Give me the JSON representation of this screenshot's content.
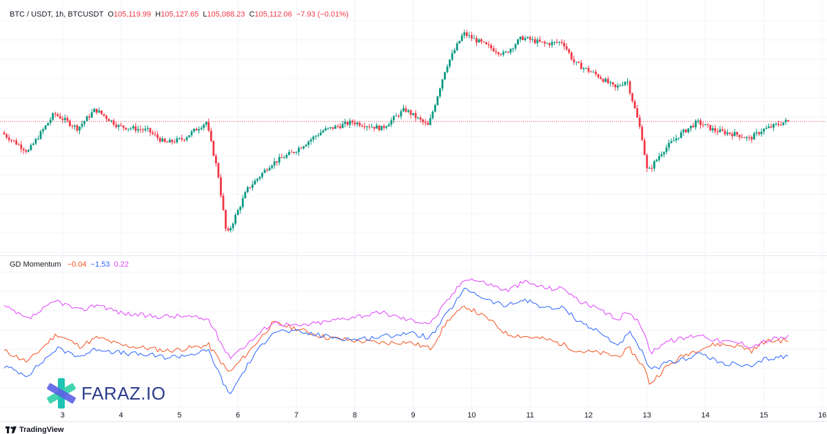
{
  "header": {
    "symbol": "BTC / USDT, 1h, BTCUSDT",
    "o_label": "O",
    "o_value": "105,119.99",
    "h_label": "H",
    "h_value": "105,127.65",
    "l_label": "L",
    "l_value": "105,088.23",
    "c_label": "C",
    "c_value": "105,112.06",
    "change": "−7.93 (−0.01%)"
  },
  "indicator": {
    "name": "GD Momentum",
    "v1": "−0.04",
    "v1_color": "#f4511e",
    "v2": "−1.53",
    "v2_color": "#2962ff",
    "v3": "0.22",
    "v3_color": "#e040fb"
  },
  "watermark": {
    "text": "FARAZ.IO"
  },
  "footer": {
    "brand": "TradingView"
  },
  "colors": {
    "up": "#089981",
    "down": "#f23645",
    "grid": "#f0f3fa",
    "last_price_line": "#f23645"
  },
  "chart_data": {
    "type": "candlestick",
    "x_ticks": [
      "3",
      "4",
      "5",
      "6",
      "7",
      "8",
      "9",
      "10",
      "11",
      "12",
      "13",
      "14",
      "15",
      "16"
    ],
    "price_anchors": [
      [
        2.0,
        104850
      ],
      [
        2.45,
        104400
      ],
      [
        2.9,
        105300
      ],
      [
        3.3,
        104950
      ],
      [
        3.6,
        105400
      ],
      [
        4.0,
        105000
      ],
      [
        4.5,
        104900
      ],
      [
        4.8,
        104600
      ],
      [
        5.1,
        104700
      ],
      [
        5.5,
        105100
      ],
      [
        5.7,
        103900
      ],
      [
        5.85,
        102400
      ],
      [
        6.2,
        103500
      ],
      [
        6.6,
        104100
      ],
      [
        7.0,
        104400
      ],
      [
        7.5,
        104900
      ],
      [
        8.0,
        105100
      ],
      [
        8.5,
        104950
      ],
      [
        8.9,
        105400
      ],
      [
        9.3,
        105000
      ],
      [
        9.6,
        106400
      ],
      [
        9.9,
        107200
      ],
      [
        10.3,
        106900
      ],
      [
        10.6,
        106700
      ],
      [
        10.9,
        107100
      ],
      [
        11.3,
        106950
      ],
      [
        11.6,
        107000
      ],
      [
        11.8,
        106500
      ],
      [
        12.2,
        106200
      ],
      [
        12.5,
        105900
      ],
      [
        12.7,
        106100
      ],
      [
        12.95,
        104800
      ],
      [
        13.05,
        103900
      ],
      [
        13.3,
        104400
      ],
      [
        13.6,
        104800
      ],
      [
        13.9,
        105100
      ],
      [
        14.2,
        104900
      ],
      [
        14.6,
        104800
      ],
      [
        14.8,
        104700
      ],
      [
        15.0,
        104900
      ],
      [
        15.2,
        105000
      ],
      [
        15.4,
        105110
      ]
    ],
    "y_range_price": [
      102200,
      107500
    ],
    "last_price": 105112.06,
    "series": [
      {
        "name": "−0.04",
        "color": "#f4511e",
        "points": [
          [
            2.0,
            -1.0
          ],
          [
            2.4,
            -2.0
          ],
          [
            2.9,
            0.5
          ],
          [
            3.3,
            -0.6
          ],
          [
            3.6,
            0.2
          ],
          [
            4.0,
            -0.5
          ],
          [
            4.5,
            -0.8
          ],
          [
            4.8,
            -1.0
          ],
          [
            5.1,
            -0.8
          ],
          [
            5.5,
            -0.5
          ],
          [
            5.85,
            -3.0
          ],
          [
            6.2,
            -1.0
          ],
          [
            6.6,
            1.5
          ],
          [
            7.0,
            1.0
          ],
          [
            7.5,
            0.2
          ],
          [
            8.0,
            -0.1
          ],
          [
            8.5,
            -0.3
          ],
          [
            8.9,
            -0.2
          ],
          [
            9.3,
            -0.8
          ],
          [
            9.6,
            1.8
          ],
          [
            9.9,
            3.0
          ],
          [
            10.3,
            1.8
          ],
          [
            10.6,
            0.5
          ],
          [
            10.9,
            0.3
          ],
          [
            11.3,
            0.0
          ],
          [
            11.6,
            -0.5
          ],
          [
            11.8,
            -1.0
          ],
          [
            12.2,
            -1.2
          ],
          [
            12.5,
            -1.5
          ],
          [
            12.7,
            -0.8
          ],
          [
            12.95,
            -2.5
          ],
          [
            13.05,
            -4.0
          ],
          [
            13.3,
            -2.6
          ],
          [
            13.6,
            -1.5
          ],
          [
            13.9,
            -0.8
          ],
          [
            14.2,
            -0.4
          ],
          [
            14.6,
            -0.6
          ],
          [
            14.8,
            -1.0
          ],
          [
            15.0,
            -0.2
          ],
          [
            15.2,
            -0.1
          ],
          [
            15.4,
            -0.04
          ]
        ]
      },
      {
        "name": "−1.53",
        "color": "#2962ff",
        "points": [
          [
            2.0,
            -2.4
          ],
          [
            2.4,
            -3.2
          ],
          [
            2.9,
            -0.8
          ],
          [
            3.3,
            -1.5
          ],
          [
            3.6,
            -0.8
          ],
          [
            4.0,
            -1.2
          ],
          [
            4.5,
            -1.4
          ],
          [
            4.8,
            -1.6
          ],
          [
            5.1,
            -1.4
          ],
          [
            5.5,
            -1.0
          ],
          [
            5.85,
            -5.0
          ],
          [
            6.2,
            -2.0
          ],
          [
            6.6,
            0.8
          ],
          [
            7.0,
            0.7
          ],
          [
            7.5,
            0.3
          ],
          [
            8.0,
            0.0
          ],
          [
            8.5,
            0.3
          ],
          [
            8.9,
            0.6
          ],
          [
            9.3,
            0.2
          ],
          [
            9.6,
            2.5
          ],
          [
            9.9,
            4.6
          ],
          [
            10.3,
            3.5
          ],
          [
            10.6,
            3.0
          ],
          [
            10.9,
            3.6
          ],
          [
            11.3,
            2.8
          ],
          [
            11.6,
            2.8
          ],
          [
            11.8,
            1.8
          ],
          [
            12.2,
            0.6
          ],
          [
            12.5,
            -0.5
          ],
          [
            12.7,
            0.6
          ],
          [
            12.95,
            -1.4
          ],
          [
            13.05,
            -2.8
          ],
          [
            13.3,
            -2.2
          ],
          [
            13.6,
            -1.8
          ],
          [
            13.9,
            -1.2
          ],
          [
            14.2,
            -2.0
          ],
          [
            14.6,
            -2.3
          ],
          [
            14.8,
            -2.5
          ],
          [
            15.0,
            -1.8
          ],
          [
            15.2,
            -1.6
          ],
          [
            15.4,
            -1.53
          ]
        ]
      },
      {
        "name": "0.22",
        "color": "#e040fb",
        "points": [
          [
            2.0,
            3.0
          ],
          [
            2.4,
            1.8
          ],
          [
            2.9,
            3.5
          ],
          [
            3.3,
            2.6
          ],
          [
            3.6,
            3.2
          ],
          [
            4.0,
            2.4
          ],
          [
            4.5,
            2.1
          ],
          [
            4.8,
            2.1
          ],
          [
            5.1,
            2.1
          ],
          [
            5.5,
            1.8
          ],
          [
            5.85,
            -1.6
          ],
          [
            6.2,
            -0.2
          ],
          [
            6.6,
            1.6
          ],
          [
            7.0,
            1.2
          ],
          [
            7.5,
            1.6
          ],
          [
            8.0,
            2.1
          ],
          [
            8.5,
            2.4
          ],
          [
            8.9,
            1.8
          ],
          [
            9.3,
            1.5
          ],
          [
            9.6,
            3.6
          ],
          [
            9.9,
            5.6
          ],
          [
            10.3,
            5.0
          ],
          [
            10.6,
            4.4
          ],
          [
            10.9,
            5.2
          ],
          [
            11.3,
            4.6
          ],
          [
            11.6,
            4.6
          ],
          [
            11.8,
            3.6
          ],
          [
            12.2,
            2.6
          ],
          [
            12.5,
            1.8
          ],
          [
            12.7,
            2.6
          ],
          [
            12.95,
            0.8
          ],
          [
            13.05,
            -1.2
          ],
          [
            13.3,
            -0.2
          ],
          [
            13.6,
            0.1
          ],
          [
            13.9,
            0.5
          ],
          [
            14.2,
            -0.1
          ],
          [
            14.6,
            -0.3
          ],
          [
            14.8,
            -0.6
          ],
          [
            15.0,
            -0.2
          ],
          [
            15.2,
            0.1
          ],
          [
            15.4,
            0.22
          ]
        ]
      }
    ],
    "y_range_indicator": [
      -6,
      6.5
    ]
  }
}
